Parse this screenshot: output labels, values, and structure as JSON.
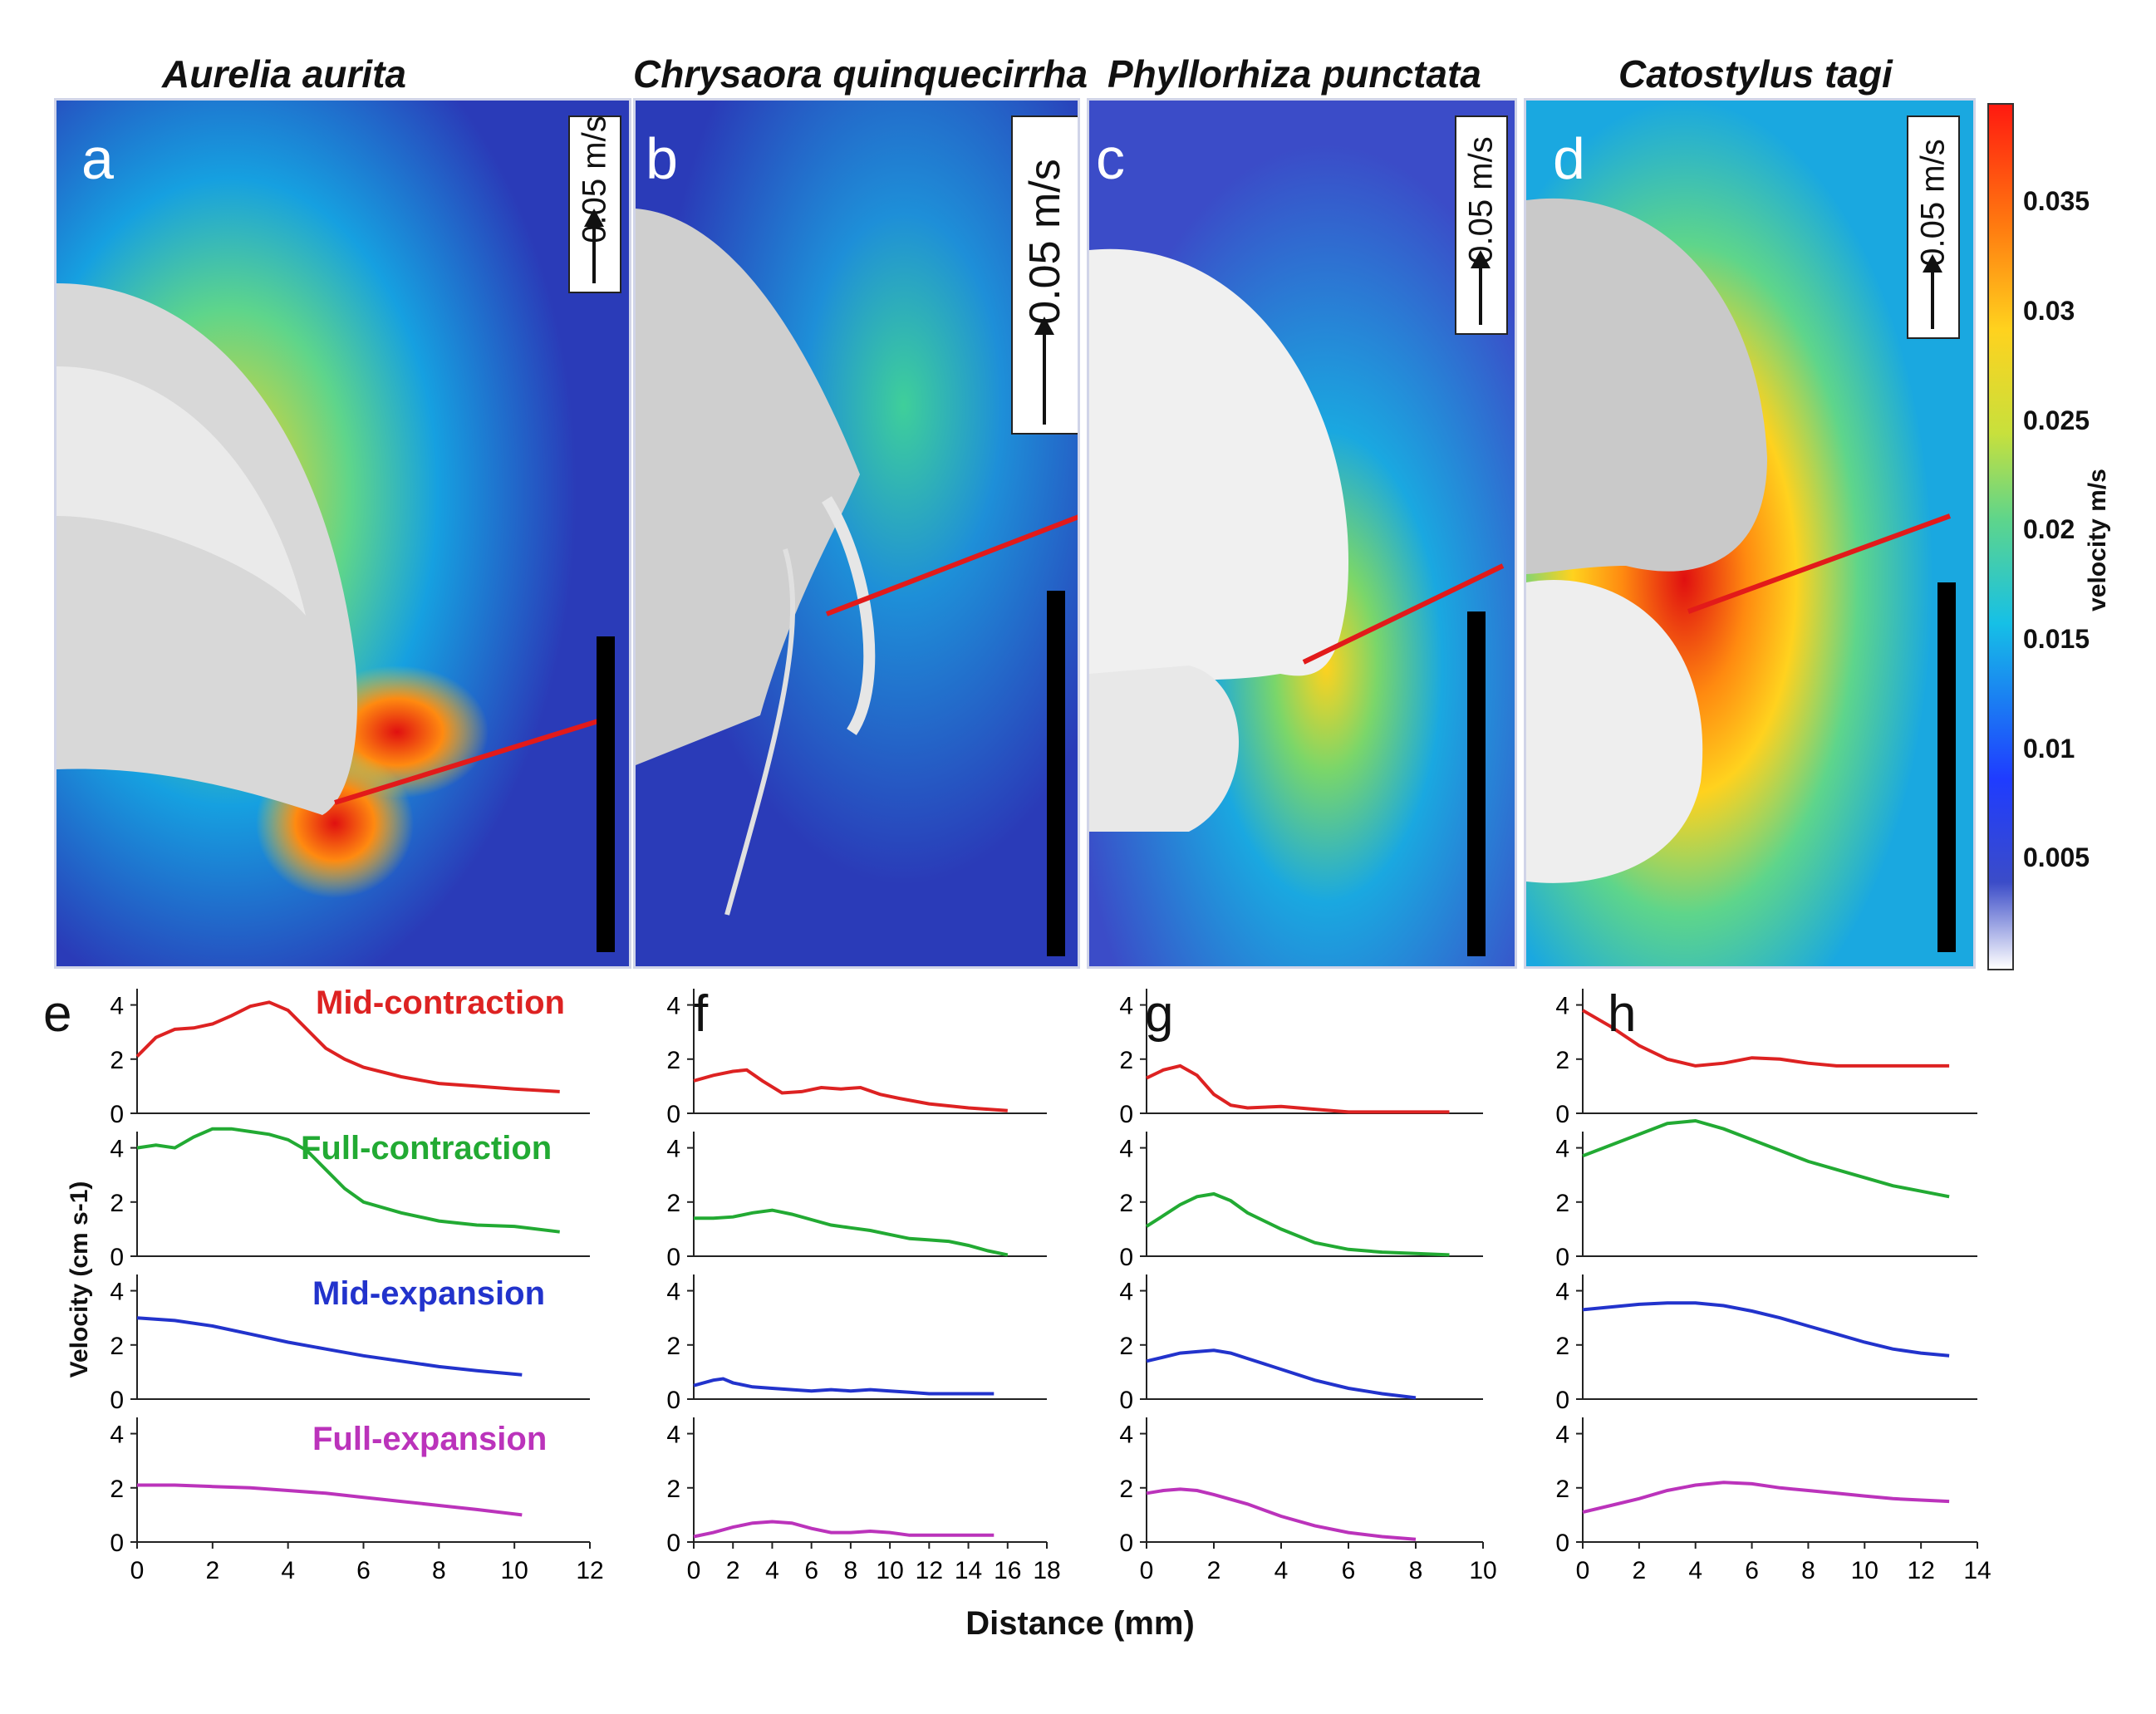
{
  "figure": {
    "species": [
      "Aurelia aurita",
      "Chrysaora quinquecirrha",
      "Phyllorhiza punctata",
      "Catostylus tagi"
    ],
    "panel_letters": [
      "a",
      "b",
      "c",
      "d"
    ],
    "plot_letters": [
      "e",
      "f",
      "g",
      "h"
    ],
    "scale_label": "0.05 m/s",
    "colorbar": {
      "title": "velocity m/s",
      "ticks": [
        "0.035",
        "0.03",
        "0.025",
        "0.02",
        "0.015",
        "0.01",
        "0.005"
      ],
      "tick_values": [
        0.035,
        0.03,
        0.025,
        0.02,
        0.015,
        0.01,
        0.005
      ],
      "min": 0.0,
      "max": 0.0395
    },
    "colors": {
      "mid_contraction": "#dd2222",
      "full_contraction": "#22aa33",
      "mid_expansion": "#2233cc",
      "full_expansion": "#bb33bb",
      "transect": "#e21a1a"
    }
  },
  "chart_data": [
    {
      "type": "line",
      "panel": "e",
      "xlabel": "Distance (mm)",
      "ylabel": "Velocity (cm s-1)",
      "xlim": [
        0,
        12
      ],
      "ylim": [
        0,
        4.6
      ],
      "xticks": [
        0,
        2,
        4,
        6,
        8,
        10,
        12
      ],
      "yticks": [
        0,
        2,
        4
      ],
      "stage_labels": [
        "Mid-contraction",
        "Full-contraction",
        "Mid-expansion",
        "Full-expansion"
      ],
      "series": [
        {
          "name": "Mid-contraction",
          "x": [
            0,
            0.5,
            1,
            1.5,
            2,
            2.5,
            3,
            3.5,
            4,
            4.5,
            5,
            5.5,
            6,
            7,
            8,
            9,
            10,
            11.2
          ],
          "values": [
            2.1,
            2.8,
            3.1,
            3.15,
            3.3,
            3.6,
            3.95,
            4.1,
            3.8,
            3.1,
            2.4,
            2.0,
            1.7,
            1.35,
            1.1,
            1.0,
            0.9,
            0.8
          ]
        },
        {
          "name": "Full-contraction",
          "x": [
            0,
            0.5,
            1,
            1.5,
            2,
            2.5,
            3,
            3.5,
            4,
            4.5,
            5,
            5.5,
            6,
            7,
            8,
            9,
            10,
            11.2
          ],
          "values": [
            4.0,
            4.1,
            4.0,
            4.4,
            4.7,
            4.7,
            4.6,
            4.5,
            4.3,
            3.9,
            3.2,
            2.5,
            2.0,
            1.6,
            1.3,
            1.15,
            1.1,
            0.9
          ]
        },
        {
          "name": "Mid-expansion",
          "x": [
            0,
            1,
            2,
            3,
            4,
            5,
            6,
            7,
            8,
            9,
            10.2
          ],
          "values": [
            3.0,
            2.9,
            2.7,
            2.4,
            2.1,
            1.85,
            1.6,
            1.4,
            1.2,
            1.05,
            0.9
          ]
        },
        {
          "name": "Full-expansion",
          "x": [
            0,
            1,
            2,
            3,
            4,
            5,
            6,
            7,
            8,
            9,
            10.2
          ],
          "values": [
            2.1,
            2.1,
            2.05,
            2.0,
            1.9,
            1.8,
            1.65,
            1.5,
            1.35,
            1.2,
            1.0
          ]
        }
      ]
    },
    {
      "type": "line",
      "panel": "f",
      "xlabel": "Distance (mm)",
      "ylabel": "Velocity (cm s-1)",
      "xlim": [
        0,
        18
      ],
      "ylim": [
        0,
        4.6
      ],
      "xticks": [
        0,
        2,
        4,
        6,
        8,
        10,
        12,
        14,
        16,
        18
      ],
      "yticks": [
        0,
        2,
        4
      ],
      "series": [
        {
          "name": "Mid-contraction",
          "x": [
            0,
            1,
            2,
            2.7,
            3.5,
            4.5,
            5.5,
            6.5,
            7.5,
            8.5,
            9.5,
            10.5,
            12,
            14,
            16
          ],
          "values": [
            1.2,
            1.4,
            1.55,
            1.6,
            1.2,
            0.75,
            0.8,
            0.95,
            0.9,
            0.95,
            0.7,
            0.55,
            0.35,
            0.2,
            0.1
          ]
        },
        {
          "name": "Full-contraction",
          "x": [
            0,
            1,
            2,
            3,
            4,
            5,
            6,
            7,
            8,
            9,
            10,
            11,
            12,
            13,
            14,
            15,
            16
          ],
          "values": [
            1.4,
            1.4,
            1.45,
            1.6,
            1.7,
            1.55,
            1.35,
            1.15,
            1.05,
            0.95,
            0.8,
            0.65,
            0.6,
            0.55,
            0.4,
            0.2,
            0.05
          ]
        },
        {
          "name": "Mid-expansion",
          "x": [
            0,
            1,
            1.5,
            2,
            3,
            4,
            5,
            6,
            7,
            8,
            9,
            10,
            11,
            12,
            13,
            14,
            15.3
          ],
          "values": [
            0.5,
            0.7,
            0.75,
            0.6,
            0.45,
            0.4,
            0.35,
            0.3,
            0.35,
            0.3,
            0.35,
            0.3,
            0.25,
            0.2,
            0.2,
            0.2,
            0.2
          ]
        },
        {
          "name": "Full-expansion",
          "x": [
            0,
            1,
            2,
            3,
            4,
            5,
            6,
            7,
            8,
            9,
            10,
            11,
            12,
            13,
            14,
            15.3
          ],
          "values": [
            0.2,
            0.35,
            0.55,
            0.7,
            0.75,
            0.7,
            0.5,
            0.35,
            0.35,
            0.4,
            0.35,
            0.25,
            0.25,
            0.25,
            0.25,
            0.25
          ]
        }
      ]
    },
    {
      "type": "line",
      "panel": "g",
      "xlabel": "Distance (mm)",
      "ylabel": "Velocity (cm s-1)",
      "xlim": [
        0,
        10
      ],
      "ylim": [
        0,
        4.6
      ],
      "xticks": [
        0,
        2,
        4,
        6,
        8,
        10
      ],
      "yticks": [
        0,
        2,
        4
      ],
      "series": [
        {
          "name": "Mid-contraction",
          "x": [
            0,
            0.5,
            1,
            1.5,
            2,
            2.5,
            3,
            4,
            5,
            6,
            7,
            8,
            9
          ],
          "values": [
            1.3,
            1.6,
            1.75,
            1.4,
            0.7,
            0.3,
            0.2,
            0.25,
            0.15,
            0.05,
            0.05,
            0.05,
            0.05
          ]
        },
        {
          "name": "Full-contraction",
          "x": [
            0,
            0.5,
            1,
            1.5,
            2,
            2.5,
            3,
            4,
            5,
            6,
            7,
            8,
            9
          ],
          "values": [
            1.1,
            1.5,
            1.9,
            2.2,
            2.3,
            2.05,
            1.6,
            1.0,
            0.5,
            0.25,
            0.15,
            0.1,
            0.05
          ]
        },
        {
          "name": "Mid-expansion",
          "x": [
            0,
            0.5,
            1,
            1.5,
            2,
            2.5,
            3,
            4,
            5,
            6,
            7,
            8
          ],
          "values": [
            1.4,
            1.55,
            1.7,
            1.75,
            1.8,
            1.7,
            1.5,
            1.1,
            0.7,
            0.4,
            0.2,
            0.05
          ]
        },
        {
          "name": "Full-expansion",
          "x": [
            0,
            0.5,
            1,
            1.5,
            2,
            3,
            4,
            5,
            6,
            7,
            8
          ],
          "values": [
            1.8,
            1.9,
            1.95,
            1.9,
            1.75,
            1.4,
            0.95,
            0.6,
            0.35,
            0.2,
            0.1
          ]
        }
      ]
    },
    {
      "type": "line",
      "panel": "h",
      "xlabel": "Distance (mm)",
      "ylabel": "Velocity (cm s-1)",
      "xlim": [
        0,
        14
      ],
      "ylim": [
        0,
        4.6
      ],
      "xticks": [
        0,
        2,
        4,
        6,
        8,
        10,
        12,
        14
      ],
      "yticks": [
        0,
        2,
        4
      ],
      "series": [
        {
          "name": "Mid-contraction",
          "x": [
            0,
            1,
            2,
            3,
            4,
            5,
            6,
            7,
            8,
            9,
            10,
            11,
            12,
            13
          ],
          "values": [
            3.8,
            3.2,
            2.5,
            2.0,
            1.75,
            1.85,
            2.05,
            2.0,
            1.85,
            1.75,
            1.75,
            1.75,
            1.75,
            1.75
          ]
        },
        {
          "name": "Full-contraction",
          "x": [
            0,
            1,
            2,
            3,
            4,
            5,
            6,
            7,
            8,
            9,
            10,
            11,
            12,
            13
          ],
          "values": [
            3.7,
            4.1,
            4.5,
            4.9,
            5.0,
            4.7,
            4.3,
            3.9,
            3.5,
            3.2,
            2.9,
            2.6,
            2.4,
            2.2
          ]
        },
        {
          "name": "Mid-expansion",
          "x": [
            0,
            1,
            2,
            3,
            4,
            5,
            6,
            7,
            8,
            9,
            10,
            11,
            12,
            13
          ],
          "values": [
            3.3,
            3.4,
            3.5,
            3.55,
            3.55,
            3.45,
            3.25,
            3.0,
            2.7,
            2.4,
            2.1,
            1.85,
            1.7,
            1.6
          ]
        },
        {
          "name": "Full-expansion",
          "x": [
            0,
            1,
            2,
            3,
            4,
            5,
            6,
            7,
            8,
            9,
            10,
            11,
            12,
            13
          ],
          "values": [
            1.1,
            1.35,
            1.6,
            1.9,
            2.1,
            2.2,
            2.15,
            2.0,
            1.9,
            1.8,
            1.7,
            1.6,
            1.55,
            1.5
          ]
        }
      ]
    }
  ]
}
